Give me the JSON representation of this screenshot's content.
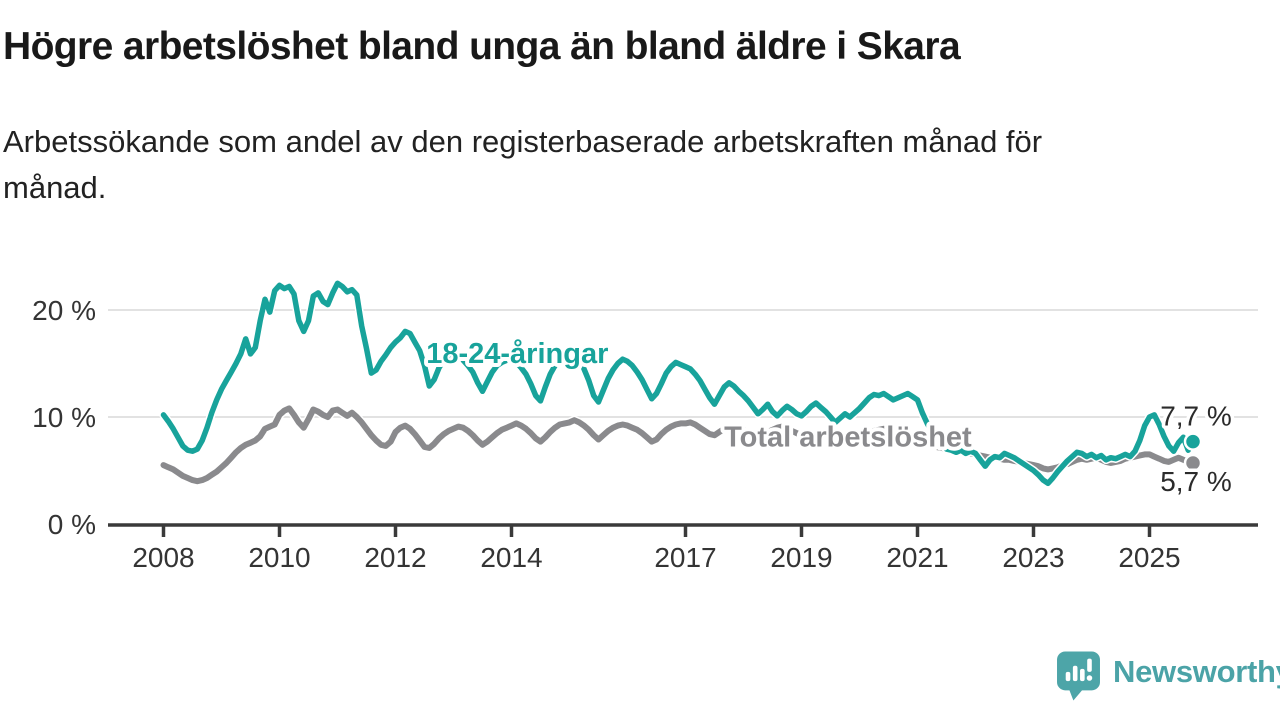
{
  "title": "Högre arbetslöshet bland unga än bland äldre i Skara",
  "subtitle_lines": [
    "Arbetssökande som andel av den registerbaserade arbetskraften månad för",
    "månad."
  ],
  "branding": {
    "logo_text": "Newsworthy",
    "logo_color": "#4ba3a7"
  },
  "colors": {
    "youth_line": "#18a39b",
    "total_line": "#8a8a8d",
    "axis": "#3a3a3a",
    "grid": "#d8d8d8",
    "tick_text": "#343434",
    "value_text": "#2b2b2b",
    "background": "#ffffff"
  },
  "chart_data": {
    "type": "line",
    "title": "Högre arbetslöshet bland unga än bland äldre i Skara",
    "xlabel": "",
    "ylabel": "",
    "x_start": {
      "year": 2008,
      "month": 1
    },
    "frequency": "monthly",
    "ylim": [
      0,
      23.5
    ],
    "grid": "horizontal",
    "x_ticks": [
      {
        "year": 2008,
        "label": "2008"
      },
      {
        "year": 2010,
        "label": "2010"
      },
      {
        "year": 2012,
        "label": "2012"
      },
      {
        "year": 2014,
        "label": "2014"
      },
      {
        "year": 2017,
        "label": "2017"
      },
      {
        "year": 2019,
        "label": "2019"
      },
      {
        "year": 2021,
        "label": "2021"
      },
      {
        "year": 2023,
        "label": "2023"
      },
      {
        "year": 2025,
        "label": "2025"
      }
    ],
    "y_ticks": [
      {
        "value": 0,
        "label": "0 %"
      },
      {
        "value": 10,
        "label": "10 %"
      },
      {
        "value": 20,
        "label": "20 %"
      }
    ],
    "series": [
      {
        "id": "total",
        "name": "Total arbetslöshet",
        "color": "#8a8a8d",
        "end_label": "5,7 %",
        "end_value": 5.7,
        "label_pos": {
          "year": 2019.8,
          "pct": 8.2
        },
        "values": [
          5.5,
          5.3,
          5.1,
          4.8,
          4.5,
          4.3,
          4.1,
          4.0,
          4.1,
          4.3,
          4.6,
          4.9,
          5.3,
          5.7,
          6.2,
          6.7,
          7.1,
          7.4,
          7.6,
          7.8,
          8.2,
          8.9,
          9.1,
          9.3,
          10.2,
          10.6,
          10.8,
          10.2,
          9.5,
          9.0,
          9.8,
          10.7,
          10.5,
          10.2,
          10.0,
          10.6,
          10.7,
          10.4,
          10.1,
          10.4,
          10.0,
          9.5,
          8.9,
          8.3,
          7.8,
          7.4,
          7.3,
          7.7,
          8.6,
          9.0,
          9.2,
          8.9,
          8.4,
          7.8,
          7.2,
          7.1,
          7.5,
          8.0,
          8.4,
          8.7,
          8.9,
          9.1,
          9.0,
          8.7,
          8.3,
          7.8,
          7.4,
          7.7,
          8.1,
          8.5,
          8.8,
          9.0,
          9.2,
          9.4,
          9.2,
          8.9,
          8.5,
          8.0,
          7.7,
          8.1,
          8.6,
          9.0,
          9.3,
          9.4,
          9.5,
          9.7,
          9.5,
          9.2,
          8.8,
          8.3,
          7.9,
          8.3,
          8.7,
          9.0,
          9.2,
          9.3,
          9.2,
          9.0,
          8.8,
          8.5,
          8.1,
          7.7,
          7.9,
          8.4,
          8.8,
          9.1,
          9.3,
          9.4,
          9.4,
          9.5,
          9.3,
          9.0,
          8.7,
          8.4,
          8.3,
          8.6,
          8.9,
          9.1,
          9.2,
          9.0,
          8.8,
          8.6,
          8.4,
          8.3,
          8.4,
          8.6,
          8.8,
          9.0,
          9.1,
          8.9,
          8.7,
          8.5,
          8.3,
          8.1,
          7.9,
          7.8,
          7.7,
          7.6,
          7.6,
          7.7,
          7.8,
          7.9,
          8.0,
          8.1,
          8.2,
          8.3,
          8.5,
          8.7,
          8.8,
          8.9,
          8.8,
          8.7,
          8.6,
          8.5,
          8.3,
          8.2,
          8.0,
          7.8,
          7.6,
          7.4,
          7.2,
          7.1,
          7.0,
          7.0,
          6.9,
          6.8,
          6.7,
          6.6,
          6.5,
          6.4,
          6.3,
          6.2,
          6.2,
          6.1,
          6.0,
          6.0,
          5.9,
          5.8,
          5.7,
          5.6,
          5.5,
          5.4,
          5.2,
          5.1,
          5.2,
          5.3,
          5.5,
          5.6,
          5.8,
          6.0,
          6.1,
          6.0,
          6.1,
          6.2,
          6.0,
          5.8,
          5.7,
          5.8,
          5.9,
          6.1,
          6.2,
          6.3,
          6.4,
          6.5,
          6.5,
          6.3,
          6.1,
          5.9,
          5.8,
          6.0,
          6.2,
          6.0,
          5.8,
          5.7
        ]
      },
      {
        "id": "youth",
        "name": "18-24-åringar",
        "color": "#18a39b",
        "end_label": "7,7 %",
        "end_value": 7.7,
        "label_pos": {
          "year": 2014.1,
          "pct": 16.0
        },
        "values": [
          10.2,
          9.6,
          8.9,
          8.1,
          7.3,
          6.9,
          6.8,
          7.0,
          7.8,
          9.0,
          10.4,
          11.6,
          12.6,
          13.4,
          14.2,
          15.0,
          15.9,
          17.3,
          15.9,
          16.5,
          19.0,
          21.0,
          19.8,
          21.8,
          22.3,
          22.0,
          22.2,
          21.5,
          19.0,
          18.0,
          19.0,
          21.3,
          21.6,
          20.8,
          20.5,
          21.6,
          22.5,
          22.2,
          21.7,
          21.9,
          21.4,
          18.5,
          16.4,
          14.1,
          14.4,
          15.2,
          15.8,
          16.5,
          17.0,
          17.4,
          18.0,
          17.8,
          17.0,
          16.2,
          14.8,
          12.9,
          13.5,
          14.6,
          15.3,
          15.8,
          16.0,
          15.7,
          15.3,
          14.8,
          14.2,
          13.2,
          12.4,
          13.3,
          14.2,
          14.8,
          15.1,
          15.3,
          15.4,
          15.1,
          14.6,
          14.0,
          13.1,
          12.0,
          11.5,
          12.8,
          14.0,
          14.8,
          15.3,
          15.6,
          15.9,
          16.1,
          15.5,
          14.5,
          13.4,
          12.0,
          11.4,
          12.5,
          13.6,
          14.4,
          15.0,
          15.4,
          15.2,
          14.8,
          14.2,
          13.5,
          12.6,
          11.7,
          12.2,
          13.1,
          14.1,
          14.7,
          15.1,
          14.9,
          14.7,
          14.5,
          14.0,
          13.4,
          12.6,
          11.8,
          11.2,
          12.0,
          12.8,
          13.2,
          12.9,
          12.4,
          12.0,
          11.5,
          10.9,
          10.3,
          10.7,
          11.2,
          10.5,
          10.1,
          10.6,
          11.0,
          10.7,
          10.3,
          10.1,
          10.5,
          11.0,
          11.3,
          10.9,
          10.5,
          10.0,
          9.5,
          9.9,
          10.3,
          10.0,
          10.4,
          10.8,
          11.3,
          11.8,
          12.1,
          12.0,
          12.2,
          11.9,
          11.6,
          11.8,
          12.0,
          12.2,
          11.9,
          11.6,
          10.4,
          9.4,
          8.6,
          7.9,
          7.4,
          7.0,
          6.9,
          6.7,
          6.9,
          6.6,
          6.8,
          6.6,
          6.0,
          5.4,
          6.0,
          6.3,
          6.2,
          6.6,
          6.4,
          6.2,
          5.9,
          5.6,
          5.3,
          5.0,
          4.6,
          4.1,
          3.8,
          4.3,
          4.9,
          5.4,
          5.9,
          6.3,
          6.7,
          6.6,
          6.3,
          6.5,
          6.2,
          6.4,
          6.0,
          6.2,
          6.1,
          6.3,
          6.5,
          6.3,
          6.8,
          7.8,
          9.2,
          10.0,
          10.2,
          9.3,
          8.2,
          7.3,
          6.8,
          7.6,
          8.1,
          6.9,
          7.7
        ]
      }
    ]
  }
}
